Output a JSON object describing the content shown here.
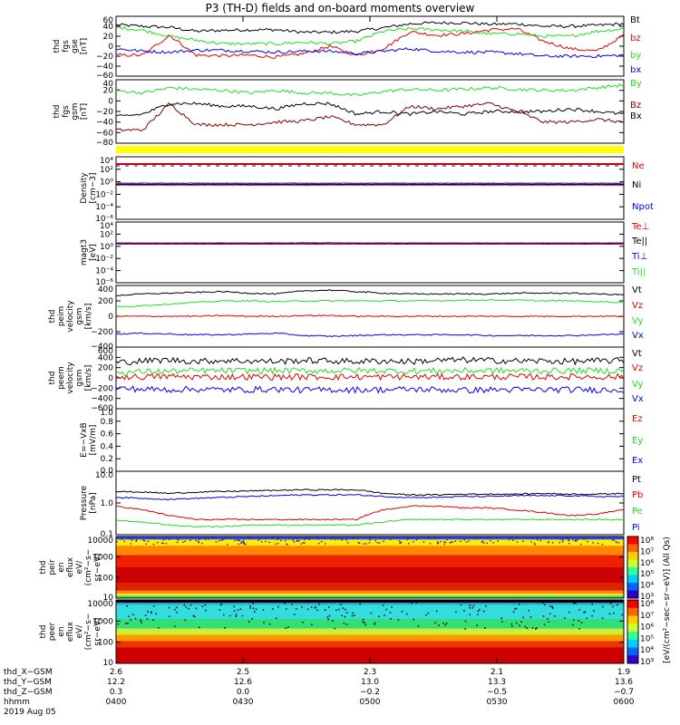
{
  "title": "P3 (TH-D) fields and on-board moments overview",
  "colors": {
    "black": "#000000",
    "red": "#e00000",
    "green": "#22dd22",
    "blue": "#0000ee",
    "dark_red": "#880000",
    "yellow": "#ffff00"
  },
  "chart_data": [
    {
      "type": "line",
      "ylabel": [
        "thd",
        "fgs",
        "gse",
        "[nT]"
      ],
      "yticks": [
        "60",
        "40",
        "20",
        "0",
        "−20",
        "−40",
        "−60"
      ],
      "ylim": [
        -60,
        60
      ],
      "legend": [
        "Bt",
        "bz",
        "by",
        "bx"
      ],
      "series": [
        {
          "name": "Bt",
          "color": "black",
          "values": [
            43,
            40,
            38,
            30,
            32,
            33,
            33,
            28,
            28,
            30,
            37,
            45,
            47,
            47,
            44,
            45,
            40,
            40,
            42,
            45
          ]
        },
        {
          "name": "bz",
          "color": "red",
          "values": [
            -18,
            -18,
            22,
            -18,
            -19,
            -18,
            -22,
            -15,
            0,
            -18,
            -5,
            29,
            22,
            25,
            33,
            35,
            10,
            -5,
            -10,
            22
          ]
        },
        {
          "name": "by",
          "color": "green",
          "values": [
            38,
            32,
            20,
            12,
            5,
            5,
            5,
            8,
            5,
            10,
            30,
            35,
            33,
            30,
            25,
            25,
            20,
            20,
            30,
            35
          ]
        },
        {
          "name": "bx",
          "color": "blue",
          "values": [
            -5,
            -10,
            -12,
            -8,
            -8,
            -10,
            -12,
            -10,
            -10,
            -15,
            -10,
            -5,
            -10,
            -12,
            -12,
            -15,
            -20,
            -20,
            -20,
            -18
          ]
        }
      ]
    },
    {
      "type": "line",
      "ylabel": [
        "thd",
        "fgs",
        "gsm",
        "[nT]"
      ],
      "yticks": [
        "40",
        "20",
        "0",
        "−20",
        "−40",
        "−60",
        "−80"
      ],
      "ylim": [
        -80,
        40
      ],
      "legend": [
        "By",
        "Bz",
        "Bx"
      ],
      "series": [
        {
          "name": "By",
          "color": "green",
          "values": [
            20,
            15,
            25,
            22,
            20,
            15,
            20,
            15,
            15,
            10,
            18,
            22,
            20,
            22,
            25,
            22,
            20,
            20,
            25,
            30
          ]
        },
        {
          "name": "Bz",
          "color": "dark_red",
          "values": [
            -55,
            -55,
            -5,
            -45,
            -45,
            -45,
            -40,
            -38,
            -30,
            -45,
            -45,
            -10,
            -15,
            -10,
            -5,
            -20,
            -40,
            -40,
            -35,
            -40
          ]
        },
        {
          "name": "Bx",
          "color": "black",
          "values": [
            -30,
            -25,
            -5,
            -5,
            -10,
            -10,
            -15,
            -5,
            -5,
            -25,
            -20,
            -25,
            -20,
            -25,
            -20,
            -20,
            -20,
            -15,
            -20,
            -25
          ]
        }
      ]
    },
    {
      "type": "line",
      "ylabel": [
        "Density",
        "[cm−3]"
      ],
      "yticks": [
        "10⁴",
        "10²",
        "10⁰",
        "10⁻²",
        "10⁻⁴",
        "10⁻⁶"
      ],
      "ylim": [
        -6,
        4
      ],
      "log": true,
      "legend": [
        "Ne",
        "Ni",
        "Npot"
      ],
      "series": [
        {
          "name": "Ne",
          "color": "red",
          "values": [
            0.3,
            0.3,
            0.3,
            0.3,
            0.3,
            0.3,
            0.3,
            0.3,
            0.3,
            0.3,
            0.3,
            0.3,
            0.3,
            0.3,
            0.3,
            0.3,
            0.3,
            0.3,
            0.3,
            0.3
          ]
        },
        {
          "name": "Ni",
          "color": "black",
          "values": [
            0.4,
            0.4,
            0.4,
            0.4,
            0.4,
            0.4,
            0.4,
            0.4,
            0.4,
            0.4,
            0.4,
            0.4,
            0.4,
            0.4,
            0.4,
            0.4,
            0.4,
            0.4,
            0.4,
            0.4
          ]
        },
        {
          "name": "Npot",
          "color": "blue",
          "values": [
            0.6,
            0.6,
            0.6,
            0.6,
            0.6,
            0.6,
            0.6,
            0.6,
            0.6,
            0.6,
            0.6,
            0.6,
            0.6,
            0.6,
            0.6,
            0.6,
            0.6,
            0.6,
            0.6,
            0.6
          ]
        }
      ]
    },
    {
      "type": "line",
      "ylabel": [
        "magt3",
        "[eV]"
      ],
      "yticks": [
        "10⁴",
        "10²",
        "10⁰",
        "10⁻²",
        "10⁻⁴",
        "10⁻⁶"
      ],
      "ylim": [
        -6,
        4
      ],
      "log": true,
      "legend": [
        "Te⊥",
        "Te||",
        "Ti⊥",
        "Ti||"
      ],
      "series": [
        {
          "name": "Ti||",
          "color": "green",
          "values": [
            3.4,
            3.4,
            3.4,
            3.4,
            3.4,
            3.4,
            3.4,
            3.4,
            3.4,
            3.4,
            3.4,
            3.4,
            3.4,
            3.4,
            3.4,
            3.4,
            3.4,
            3.4,
            3.4,
            3.4
          ]
        },
        {
          "name": "Ti⊥",
          "color": "blue",
          "values": [
            3.5,
            3.5,
            3.5,
            3.5,
            3.5,
            3.5,
            3.5,
            3.7,
            3.7,
            3.5,
            3.5,
            3.5,
            3.5,
            3.5,
            3.5,
            3.5,
            3.5,
            3.5,
            3.5,
            3.5
          ]
        },
        {
          "name": "Te||",
          "color": "black",
          "values": [
            2.5,
            2.5,
            2.5,
            2.5,
            2.5,
            2.5,
            2.5,
            2.5,
            2.5,
            2.5,
            2.5,
            2.5,
            2.5,
            2.5,
            2.5,
            2.5,
            2.5,
            2.5,
            2.5,
            2.5
          ]
        },
        {
          "name": "Te⊥",
          "color": "red",
          "values": [
            2.3,
            2.3,
            2.3,
            2.3,
            2.3,
            2.3,
            2.3,
            2.3,
            2.3,
            2.3,
            2.3,
            2.3,
            2.3,
            2.3,
            2.3,
            2.3,
            2.3,
            2.3,
            2.3,
            2.3
          ]
        }
      ]
    },
    {
      "type": "line",
      "ylabel": [
        "thd",
        "peim",
        "velocity",
        "gsm",
        "[km/s]"
      ],
      "yticks": [
        "400",
        "200",
        "0",
        "−200",
        "−400"
      ],
      "ylim": [
        -400,
        400
      ],
      "legend": [
        "Vt",
        "Vz",
        "Vy",
        "Vx"
      ],
      "series": [
        {
          "name": "Vt",
          "color": "black",
          "values": [
            270,
            290,
            300,
            310,
            320,
            300,
            290,
            330,
            340,
            320,
            300,
            290,
            290,
            290,
            290,
            300,
            300,
            300,
            290,
            280
          ]
        },
        {
          "name": "Vz",
          "color": "red",
          "values": [
            0,
            0,
            0,
            0,
            10,
            0,
            0,
            10,
            10,
            0,
            0,
            0,
            0,
            0,
            0,
            0,
            0,
            0,
            0,
            0
          ]
        },
        {
          "name": "Vy",
          "color": "green",
          "values": [
            120,
            140,
            160,
            180,
            200,
            200,
            190,
            200,
            200,
            200,
            200,
            200,
            200,
            210,
            210,
            210,
            200,
            200,
            190,
            180
          ]
        },
        {
          "name": "Vx",
          "color": "blue",
          "values": [
            -230,
            -220,
            -230,
            -240,
            -240,
            -230,
            -220,
            -250,
            -260,
            -250,
            -240,
            -240,
            -240,
            -240,
            -250,
            -250,
            -250,
            -250,
            -240,
            -230
          ]
        }
      ]
    },
    {
      "type": "line",
      "ylabel": [
        "thd",
        "peem",
        "velocity",
        "gsm",
        "[km/s]"
      ],
      "yticks": [
        "600",
        "400",
        "200",
        "0",
        "−200",
        "−400",
        "−600"
      ],
      "ylim": [
        -600,
        600
      ],
      "legend": [
        "Vt",
        "Vz",
        "Vy",
        "Vx"
      ],
      "series": [
        {
          "name": "Vt",
          "color": "black",
          "values": [
            300,
            330,
            350,
            320,
            340,
            330,
            320,
            340,
            330,
            320,
            330,
            320,
            340,
            350,
            340,
            330,
            330,
            320,
            330,
            340
          ]
        },
        {
          "name": "Vz",
          "color": "red",
          "values": [
            20,
            20,
            30,
            20,
            20,
            20,
            20,
            20,
            20,
            20,
            20,
            20,
            20,
            20,
            20,
            20,
            20,
            20,
            20,
            20
          ]
        },
        {
          "name": "Vy",
          "color": "green",
          "values": [
            100,
            120,
            130,
            140,
            140,
            140,
            140,
            140,
            140,
            140,
            140,
            130,
            140,
            140,
            140,
            140,
            140,
            140,
            140,
            140
          ]
        },
        {
          "name": "Vx",
          "color": "blue",
          "values": [
            -200,
            -220,
            -230,
            -220,
            -230,
            -230,
            -220,
            -240,
            -230,
            -230,
            -230,
            -220,
            -230,
            -240,
            -230,
            -230,
            -230,
            -230,
            -230,
            -230
          ]
        }
      ]
    },
    {
      "type": "line",
      "ylabel": [
        "E=−VxB",
        "[mV/m]"
      ],
      "yticks": [
        "1.0",
        "0.8",
        "0.6",
        "0.4",
        "0.2",
        "0.0"
      ],
      "ylim": [
        0,
        1
      ],
      "legend": [
        "Ez",
        "Ey",
        "Ex"
      ],
      "series": []
    },
    {
      "type": "line",
      "ylabel": [
        "Pressure",
        "[nPa]"
      ],
      "yticks": [
        "10.0",
        "1.0",
        "0.1"
      ],
      "ylim": [
        -1,
        1
      ],
      "log": true,
      "legend": [
        "Pt",
        "Pb",
        "Pe",
        "Pi"
      ],
      "series": [
        {
          "name": "Pt",
          "color": "black",
          "values": [
            2.3,
            2.2,
            2.0,
            2.2,
            2.3,
            2.4,
            2.5,
            2.6,
            2.6,
            2.6,
            2.0,
            1.8,
            1.8,
            1.9,
            1.9,
            1.9,
            2.0,
            1.9,
            1.9,
            2.0
          ]
        },
        {
          "name": "Pi",
          "color": "blue",
          "values": [
            1.5,
            1.4,
            1.3,
            1.4,
            1.5,
            1.6,
            1.7,
            1.8,
            1.8,
            1.8,
            1.6,
            1.5,
            1.5,
            1.6,
            1.6,
            1.7,
            1.7,
            1.7,
            1.6,
            1.6
          ]
        },
        {
          "name": "Pb",
          "color": "red",
          "values": [
            0.8,
            0.6,
            0.4,
            0.3,
            0.3,
            0.3,
            0.3,
            0.3,
            0.3,
            0.3,
            0.6,
            0.8,
            0.8,
            0.7,
            0.7,
            0.6,
            0.5,
            0.4,
            0.45,
            0.6
          ]
        },
        {
          "name": "Pe",
          "color": "green",
          "values": [
            0.28,
            0.25,
            0.2,
            0.18,
            0.18,
            0.2,
            0.2,
            0.2,
            0.2,
            0.2,
            0.25,
            0.3,
            0.3,
            0.3,
            0.3,
            0.3,
            0.3,
            0.3,
            0.3,
            0.3
          ]
        }
      ]
    },
    {
      "type": "heatmap",
      "ylabel": [
        "thd",
        "peir",
        "en",
        "eflux",
        "eV/",
        "(cm²−s−",
        "sr−eV)"
      ],
      "yticks": [
        "10000",
        "1000",
        "100",
        "10"
      ]
    },
    {
      "type": "heatmap",
      "ylabel": [
        "thd",
        "peer",
        "en",
        "eflux",
        "eV/",
        "(cm²−s−",
        "sr−eV)"
      ],
      "yticks": [
        "10000",
        "1000",
        "100",
        "10"
      ]
    }
  ],
  "colorbar": {
    "label": "[eV/(cm²−sec−sr−eV)]  (All Qs)",
    "upper_ticks": [
      "10⁸",
      "10⁷",
      "10⁶",
      "10⁵",
      "10⁴",
      "10³"
    ],
    "lower_ticks": [
      "10⁸",
      "10⁷",
      "10⁶",
      "10⁵",
      "10⁴",
      "10³"
    ]
  },
  "xaxis": {
    "rows": [
      {
        "name": "thd_X−GSM",
        "values": [
          "2.6",
          "2.5",
          "2.3",
          "2.1",
          "1.9"
        ]
      },
      {
        "name": "thd_Y−GSM",
        "values": [
          "12.2",
          "12.6",
          "13.0",
          "13.3",
          "13.6"
        ]
      },
      {
        "name": "thd_Z−GSM",
        "values": [
          "0.3",
          "0.0",
          "−0.2",
          "−0.5",
          "−0.7"
        ]
      },
      {
        "name": "hhmm",
        "values": [
          "0400",
          "0430",
          "0500",
          "0530",
          "0600"
        ]
      }
    ],
    "date": "2019 Aug 05"
  }
}
